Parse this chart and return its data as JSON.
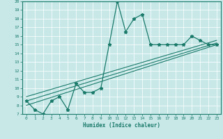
{
  "title": "",
  "xlabel": "Humidex (Indice chaleur)",
  "bg_color": "#c8e8e8",
  "line_color": "#1a7a6a",
  "grid_color": "#ffffff",
  "xlim": [
    -0.5,
    23.5
  ],
  "ylim": [
    7,
    20
  ],
  "xticks": [
    0,
    1,
    2,
    3,
    4,
    5,
    6,
    7,
    8,
    9,
    10,
    11,
    12,
    13,
    14,
    15,
    16,
    17,
    18,
    19,
    20,
    21,
    22,
    23
  ],
  "yticks": [
    7,
    8,
    9,
    10,
    11,
    12,
    13,
    14,
    15,
    16,
    17,
    18,
    19,
    20
  ],
  "series1_x": [
    0,
    1,
    2,
    3,
    4,
    5,
    6,
    7,
    8,
    9,
    10,
    11,
    12,
    13,
    14,
    15,
    16,
    17,
    18,
    19,
    20,
    21,
    22,
    23
  ],
  "series1_y": [
    8.5,
    7.5,
    7.0,
    8.5,
    9.0,
    7.5,
    10.5,
    9.5,
    9.5,
    10.0,
    15.0,
    20.0,
    16.5,
    18.0,
    18.5,
    15.0,
    15.0,
    15.0,
    15.0,
    15.0,
    16.0,
    15.5,
    15.0,
    15.0
  ],
  "series2_x": [
    0,
    23
  ],
  "series2_y": [
    9.0,
    15.5
  ],
  "series3_x": [
    0,
    23
  ],
  "series3_y": [
    8.5,
    15.2
  ],
  "series4_x": [
    0,
    23
  ],
  "series4_y": [
    8.0,
    15.0
  ]
}
